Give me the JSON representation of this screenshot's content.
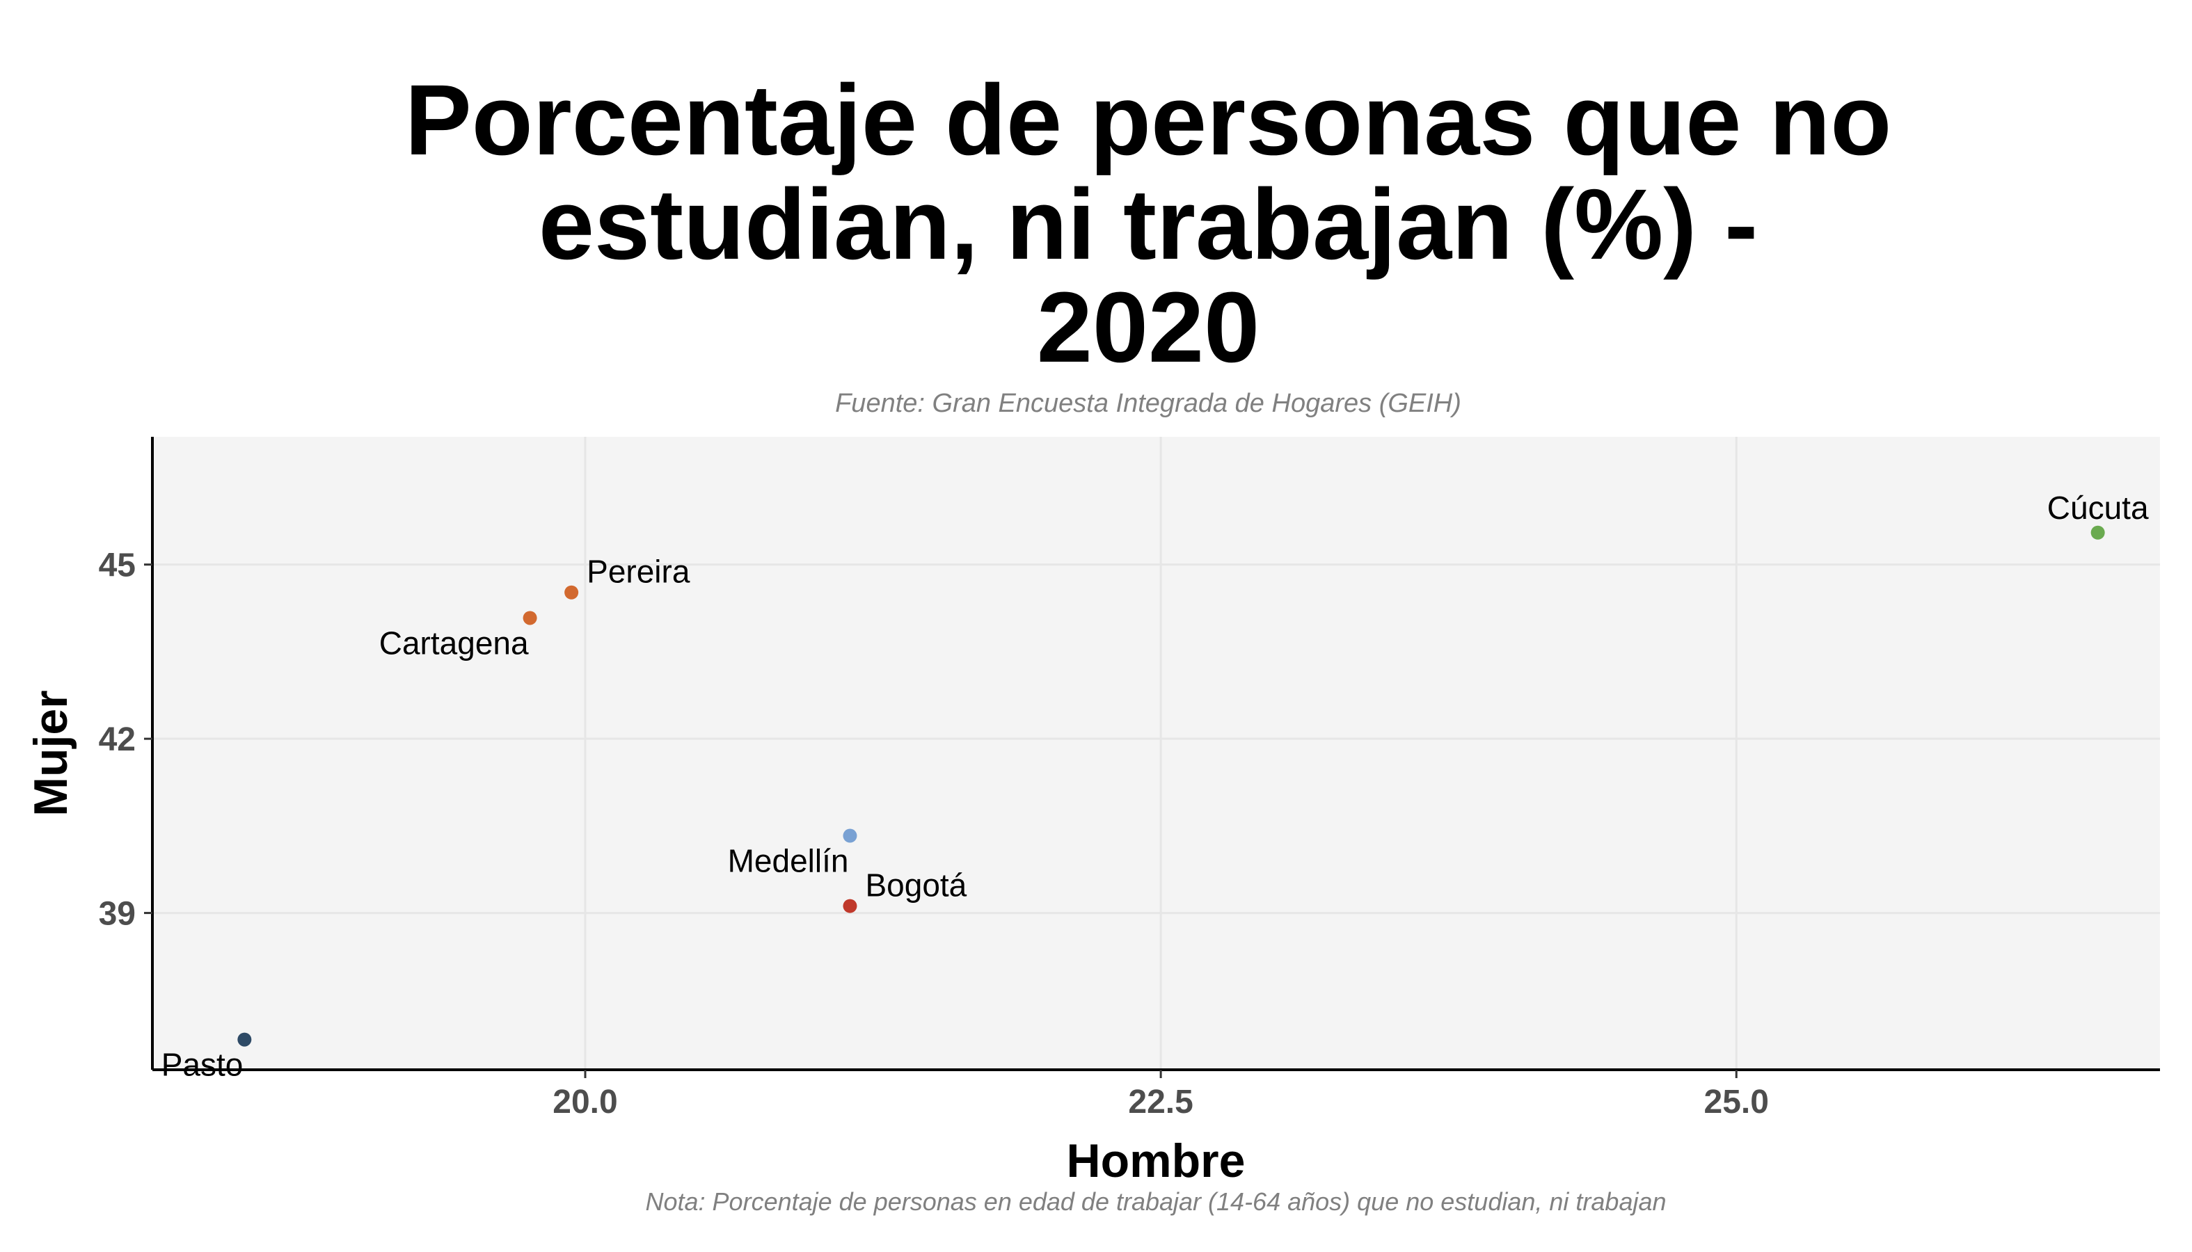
{
  "chart_data": {
    "type": "scatter",
    "title_lines": [
      "Porcentaje de personas que no",
      "estudian, ni trabajan (%) -",
      "2020"
    ],
    "subtitle": "Fuente: Gran Encuesta Integrada de Hogares (GEIH)",
    "caption": "Nota: Porcentaje de personas en edad de trabajar (14-64 años) que no estudian, ni trabajan",
    "xlabel": "Hombre",
    "ylabel": "Mujer",
    "xlim": [
      18.12,
      26.84
    ],
    "ylim": [
      36.3,
      47.2
    ],
    "x_ticks": [
      {
        "value": 20.0,
        "label": "20.0"
      },
      {
        "value": 22.5,
        "label": "22.5"
      },
      {
        "value": 25.0,
        "label": "25.0"
      }
    ],
    "y_ticks": [
      {
        "value": 39,
        "label": "39"
      },
      {
        "value": 42,
        "label": "42"
      },
      {
        "value": 45,
        "label": "45"
      }
    ],
    "grid": true,
    "legend": "none",
    "points": [
      {
        "label": "Cúcuta",
        "x": 26.57,
        "y": 45.55,
        "color": "#6aaa4f",
        "label_pos": "above"
      },
      {
        "label": "Pereira",
        "x": 19.94,
        "y": 44.52,
        "color": "#d2692f",
        "label_pos": "above-right"
      },
      {
        "label": "Cartagena",
        "x": 19.76,
        "y": 44.08,
        "color": "#d2692f",
        "label_pos": "below-left"
      },
      {
        "label": "Medellín",
        "x": 21.15,
        "y": 40.33,
        "color": "#79a1d3",
        "label_pos": "below-left"
      },
      {
        "label": "Bogotá",
        "x": 21.15,
        "y": 39.12,
        "color": "#c0392b",
        "label_pos": "above-right"
      },
      {
        "label": "Pasto",
        "x": 18.52,
        "y": 36.82,
        "color": "#2e4a66",
        "label_pos": "below-left"
      }
    ]
  }
}
